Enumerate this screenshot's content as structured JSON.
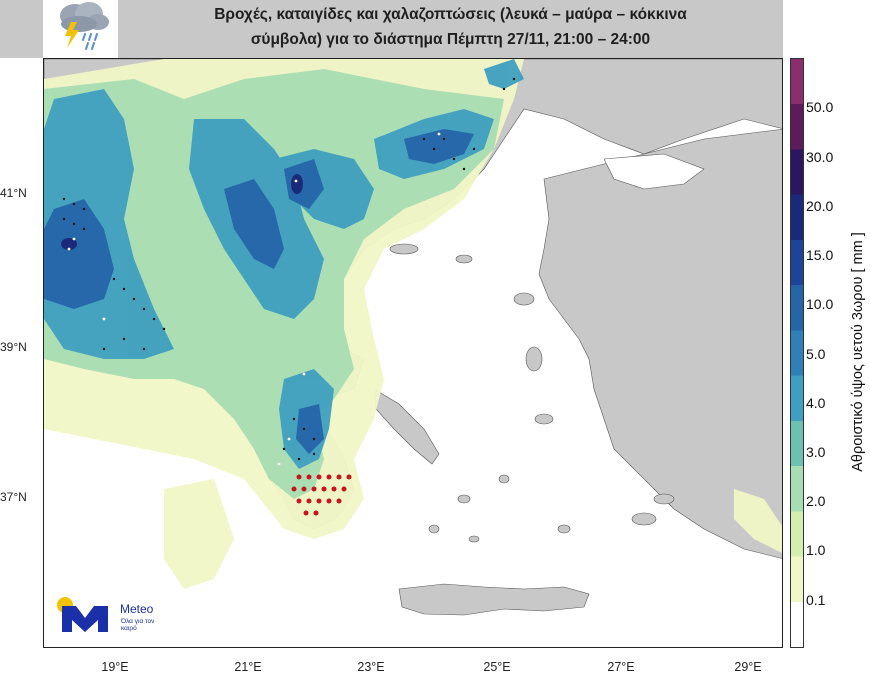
{
  "header": {
    "title": "Βροχές, καταιγίδες και χαλαζοπτώσεις (λευκά – μαύρα – κόκκινα\nσύμβολα) για το διάστημα  Πέμπτη 27/11, 21:00 – 24:00",
    "icon": "rain-cloud-lightning-icon"
  },
  "map": {
    "lat_labels": [
      "41°N",
      "39°N",
      "37°N"
    ],
    "lon_labels": [
      "19°E",
      "21°E",
      "23°E",
      "25°E",
      "27°E",
      "29°E"
    ],
    "land_color": "#c8c8c8",
    "sea_color": "#ffffff"
  },
  "colorbar": {
    "title": "Αθροιστικό ύψος υετού 3ωρου [ mm ]",
    "ticks": [
      "50.0",
      "30.0",
      "20.0",
      "15.0",
      "10.0",
      "5.0",
      "4.0",
      "3.0",
      "2.0",
      "1.0",
      "0.1"
    ],
    "colors": [
      "#ffffff",
      "#f1f7c6",
      "#d4eeb0",
      "#a8dcb3",
      "#6cc1b0",
      "#3f9fc0",
      "#2f7fb8",
      "#2565a8",
      "#1d449a",
      "#1a2a7a",
      "#2b1660",
      "#5e1b5c",
      "#8a2e6e"
    ]
  },
  "logo": {
    "name": "Meteo",
    "tagline": "Όλα για τον καιρό"
  }
}
